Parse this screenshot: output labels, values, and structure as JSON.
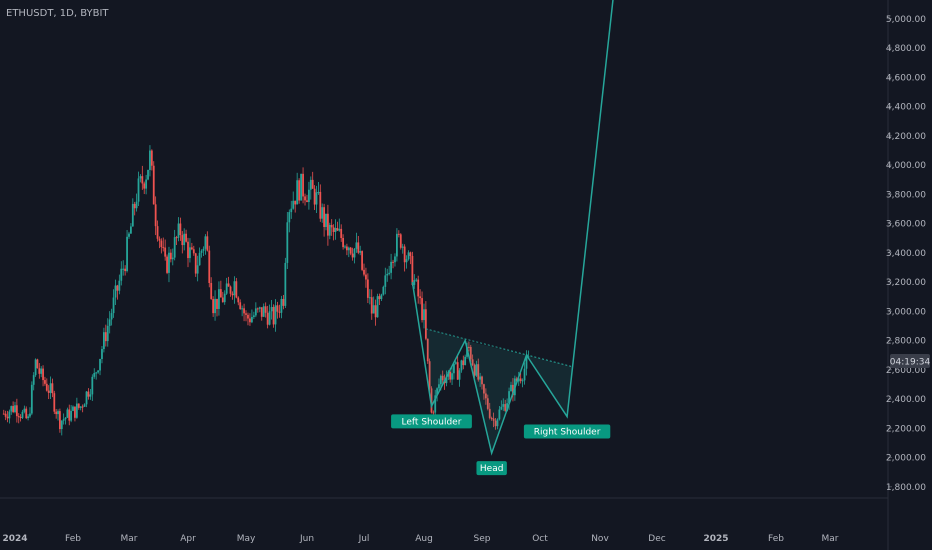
{
  "symbol_label": "ETHUSDT, 1D, BYBIT",
  "price_tag": "04:19:34",
  "colors": {
    "background": "#131722",
    "up": "#26a69a",
    "down": "#ef5350",
    "pattern": "#26a69a",
    "label_bg": "#089981",
    "axis_text": "#b2b5be"
  },
  "chart_data": {
    "type": "candlestick",
    "title": "ETHUSDT, 1D, BYBIT",
    "y_ticks": [
      "5,000.00",
      "4,800.00",
      "4,600.00",
      "4,400.00",
      "4,200.00",
      "4,000.00",
      "3,800.00",
      "3,600.00",
      "3,400.00",
      "3,200.00",
      "3,000.00",
      "2,800.00",
      "2,600.00",
      "2,400.00",
      "2,200.00",
      "2,000.00",
      "1,800.00"
    ],
    "y_tick_values": [
      5000,
      4800,
      4600,
      4400,
      4200,
      4000,
      3800,
      3600,
      3400,
      3200,
      3000,
      2800,
      2600,
      2400,
      2200,
      2000,
      1800
    ],
    "x_ticks": [
      "2024",
      "Feb",
      "Mar",
      "Apr",
      "May",
      "Jun",
      "Jul",
      "Aug",
      "Sep",
      "Oct",
      "Nov",
      "Dec",
      "2025",
      "Feb",
      "Mar"
    ],
    "x_tick_dates": [
      "2024-01-01",
      "2024-02-01",
      "2024-03-01",
      "2024-04-01",
      "2024-05-01",
      "2024-06-01",
      "2024-07-01",
      "2024-08-01",
      "2024-09-01",
      "2024-10-01",
      "2024-11-01",
      "2024-12-01",
      "2025-01-01",
      "2025-02-01",
      "2025-03-01"
    ],
    "ylim": [
      1700,
      5100
    ],
    "close_path": [
      [
        "2023-12-26",
        2300
      ],
      [
        "2024-01-01",
        2350
      ],
      [
        "2024-01-08",
        2250
      ],
      [
        "2024-01-12",
        2650
      ],
      [
        "2024-01-15",
        2550
      ],
      [
        "2024-01-20",
        2450
      ],
      [
        "2024-01-25",
        2250
      ],
      [
        "2024-01-31",
        2300
      ],
      [
        "2024-02-05",
        2350
      ],
      [
        "2024-02-12",
        2550
      ],
      [
        "2024-02-20",
        2950
      ],
      [
        "2024-02-28",
        3350
      ],
      [
        "2024-03-05",
        3800
      ],
      [
        "2024-03-10",
        3950
      ],
      [
        "2024-03-12",
        4050
      ],
      [
        "2024-03-15",
        3650
      ],
      [
        "2024-03-20",
        3300
      ],
      [
        "2024-03-28",
        3550
      ],
      [
        "2024-04-05",
        3300
      ],
      [
        "2024-04-10",
        3500
      ],
      [
        "2024-04-14",
        3050
      ],
      [
        "2024-04-20",
        3100
      ],
      [
        "2024-04-25",
        3200
      ],
      [
        "2024-05-01",
        2950
      ],
      [
        "2024-05-10",
        3000
      ],
      [
        "2024-05-15",
        2950
      ],
      [
        "2024-05-20",
        3100
      ],
      [
        "2024-05-22",
        3700
      ],
      [
        "2024-05-28",
        3850
      ],
      [
        "2024-06-05",
        3800
      ],
      [
        "2024-06-12",
        3550
      ],
      [
        "2024-06-20",
        3500
      ],
      [
        "2024-06-28",
        3400
      ],
      [
        "2024-07-05",
        3000
      ],
      [
        "2024-07-10",
        3050
      ],
      [
        "2024-07-15",
        3400
      ],
      [
        "2024-07-20",
        3500
      ],
      [
        "2024-07-25",
        3300
      ],
      [
        "2024-08-01",
        2950
      ],
      [
        "2024-08-05",
        2300
      ],
      [
        "2024-08-10",
        2550
      ],
      [
        "2024-08-20",
        2600
      ],
      [
        "2024-08-25",
        2750
      ],
      [
        "2024-09-01",
        2450
      ],
      [
        "2024-09-07",
        2250
      ],
      [
        "2024-09-12",
        2350
      ],
      [
        "2024-09-20",
        2550
      ],
      [
        "2024-09-25",
        2650
      ]
    ],
    "series": [
      {
        "name": "",
        "points": [
          [
            "2024-07-26",
            3200
          ],
          [
            "2024-08-05",
            2350
          ],
          [
            "2024-08-23",
            2800
          ],
          [
            "2024-09-06",
            2030
          ],
          [
            "2024-09-24",
            2700
          ],
          [
            "2024-10-15",
            2280
          ],
          [
            "2024-11-08",
            5150
          ]
        ]
      }
    ],
    "neckline": {
      "start": [
        "2024-08-02",
        2880
      ],
      "end": [
        "2024-10-18",
        2620
      ]
    },
    "annotations": [
      {
        "text": "Left Shoulder",
        "date": "2024-08-05",
        "price": 2350
      },
      {
        "text": "Head",
        "date": "2024-09-06",
        "price": 2030
      },
      {
        "text": "Right Shoulder",
        "date": "2024-10-15",
        "price": 2280
      }
    ],
    "grid": false,
    "legend": "none"
  }
}
